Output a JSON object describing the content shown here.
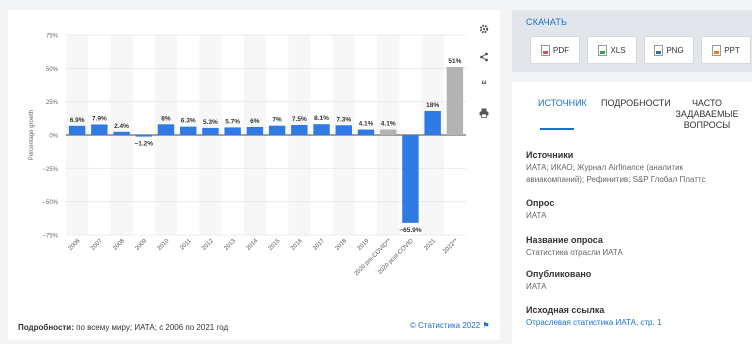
{
  "chart_data": {
    "type": "bar",
    "ylabel": "Percentage growth",
    "ylim": [
      -75,
      75
    ],
    "yticks": [
      75,
      50,
      25,
      0,
      -25,
      -50,
      -75
    ],
    "ytick_labels": [
      "75%",
      "50%",
      "25%",
      "0%",
      "−25%",
      "−50%",
      "−75%"
    ],
    "categories": [
      "2006",
      "2007",
      "2008",
      "2009",
      "2010",
      "2011",
      "2012",
      "2013",
      "2014",
      "2015",
      "2016",
      "2017",
      "2018",
      "2019",
      "2020 pre-COVID**",
      "2020 post-COVID",
      "2021",
      "2022**"
    ],
    "values": [
      6.9,
      7.9,
      2.4,
      -1.2,
      8,
      6.3,
      5.3,
      5.7,
      6,
      7,
      7.5,
      8.1,
      7.3,
      4.1,
      4.1,
      -65.9,
      18,
      51
    ],
    "value_labels": [
      "6.9%",
      "7.9%",
      "2.4%",
      "−1.2%",
      "8%",
      "6.3%",
      "5.3%",
      "5.7%",
      "6%",
      "7%",
      "7.5%",
      "8.1%",
      "7.3%",
      "4.1%",
      "4.1%",
      "−65.9%",
      "18%",
      "51%"
    ],
    "forecast": [
      false,
      false,
      false,
      false,
      false,
      false,
      false,
      false,
      false,
      false,
      false,
      false,
      false,
      false,
      true,
      false,
      false,
      true
    ],
    "colors": {
      "bar": "#2f7ae5",
      "forecast": "#b3b3b3",
      "grid": "#e6e6e6",
      "band": "#f7f7f7"
    },
    "grid": true
  },
  "chart_footer": {
    "details_label": "Подробности:",
    "details_text": "по всему миру; ИАТА; с 2006 по 2021 год",
    "copyright": "© Статистика 2022"
  },
  "tools": {
    "settings_icon": "gear-icon",
    "share_icon": "share-icon",
    "cite_icon": "quote-icon",
    "print_icon": "print-icon"
  },
  "download": {
    "title": "СКАЧАТЬ",
    "buttons": [
      "PDF",
      "XLS",
      "PNG",
      "PPT"
    ]
  },
  "source_panel": {
    "tabs": [
      "ИСТОЧНИК",
      "ПОДРОБНОСТИ",
      "ЧАСТО\nЗАДАВАЕМЫЕ\nВОПРОСЫ"
    ],
    "sections": [
      {
        "heading": "Источники",
        "text": "ИАТА; ИКАО; Журнал Airfinance (аналитик авиакомпаний); Рефинитив; S&P Глобал Платтс"
      },
      {
        "heading": "Опрос",
        "text": "ИАТА"
      },
      {
        "heading": "Название опроса",
        "text": "Статистика отрасли ИАТА"
      },
      {
        "heading": "Опубликовано",
        "text": "ИАТА"
      },
      {
        "heading": "Исходная ссылка",
        "text": "Отраслевая статистика ИАТА, стр. 1"
      }
    ]
  }
}
